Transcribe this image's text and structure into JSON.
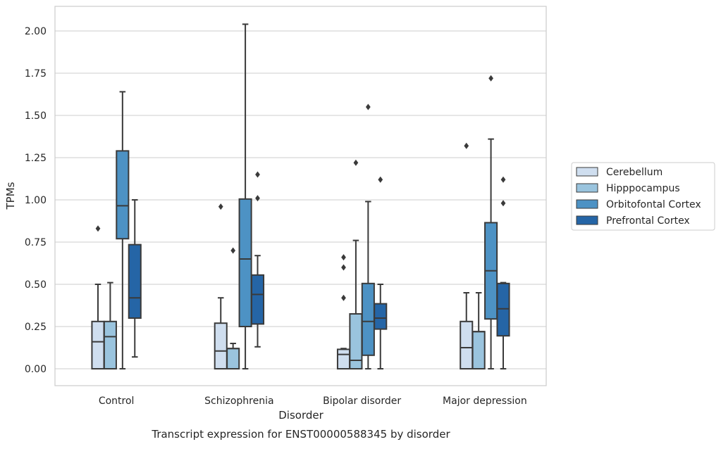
{
  "caption": "Transcript expression for ENST00000588345 by disorder",
  "chart_data": {
    "type": "box",
    "title": "",
    "xlabel": "Disorder",
    "ylabel": "TPMs",
    "ylim": [
      -0.1,
      2.15
    ],
    "yticks": [
      0.0,
      0.25,
      0.5,
      0.75,
      1.0,
      1.25,
      1.5,
      1.75,
      2.0
    ],
    "ytick_labels": [
      "0.00",
      "0.25",
      "0.50",
      "0.75",
      "1.00",
      "1.25",
      "1.50",
      "1.75",
      "2.00"
    ],
    "grid": "horizontal",
    "legend_position": "right",
    "categories": [
      "Control",
      "Schizophrenia",
      "Bipolar disorder",
      "Major depression"
    ],
    "series": [
      {
        "name": "Cerebellum",
        "color": "#cfdeef",
        "boxes": [
          {
            "whisker_low": 0.0,
            "q1": 0.0,
            "median": 0.16,
            "q3": 0.28,
            "whisker_high": 0.5,
            "outliers": [
              0.83
            ]
          },
          {
            "whisker_low": 0.0,
            "q1": 0.0,
            "median": 0.105,
            "q3": 0.27,
            "whisker_high": 0.42,
            "outliers": [
              0.96
            ]
          },
          {
            "whisker_low": 0.0,
            "q1": 0.0,
            "median": 0.085,
            "q3": 0.115,
            "whisker_high": 0.12,
            "outliers": [
              0.42,
              0.6,
              0.66
            ]
          },
          {
            "whisker_low": 0.0,
            "q1": 0.0,
            "median": 0.125,
            "q3": 0.28,
            "whisker_high": 0.45,
            "outliers": [
              1.32
            ]
          }
        ]
      },
      {
        "name": "Hipppocampus",
        "color": "#9ac4de",
        "boxes": [
          {
            "whisker_low": 0.0,
            "q1": 0.0,
            "median": 0.19,
            "q3": 0.28,
            "whisker_high": 0.51,
            "outliers": []
          },
          {
            "whisker_low": 0.0,
            "q1": 0.0,
            "median": 0.12,
            "q3": 0.12,
            "whisker_high": 0.15,
            "outliers": [
              0.7
            ]
          },
          {
            "whisker_low": 0.0,
            "q1": 0.0,
            "median": 0.05,
            "q3": 0.325,
            "whisker_high": 0.76,
            "outliers": [
              1.22
            ]
          },
          {
            "whisker_low": 0.0,
            "q1": 0.0,
            "median": 0.22,
            "q3": 0.22,
            "whisker_high": 0.45,
            "outliers": []
          }
        ]
      },
      {
        "name": "Orbitofontal Cortex",
        "color": "#4d92c4",
        "boxes": [
          {
            "whisker_low": 0.0,
            "q1": 0.77,
            "median": 0.965,
            "q3": 1.29,
            "whisker_high": 1.64,
            "outliers": []
          },
          {
            "whisker_low": 0.0,
            "q1": 0.25,
            "median": 0.65,
            "q3": 1.005,
            "whisker_high": 2.04,
            "outliers": []
          },
          {
            "whisker_low": 0.0,
            "q1": 0.08,
            "median": 0.28,
            "q3": 0.505,
            "whisker_high": 0.99,
            "outliers": [
              1.55
            ]
          },
          {
            "whisker_low": 0.0,
            "q1": 0.295,
            "median": 0.58,
            "q3": 0.865,
            "whisker_high": 1.36,
            "outliers": [
              1.72
            ]
          }
        ]
      },
      {
        "name": "Prefrontal Cortex",
        "color": "#2565a6",
        "boxes": [
          {
            "whisker_low": 0.07,
            "q1": 0.3,
            "median": 0.42,
            "q3": 0.735,
            "whisker_high": 1.0,
            "outliers": []
          },
          {
            "whisker_low": 0.13,
            "q1": 0.265,
            "median": 0.44,
            "q3": 0.555,
            "whisker_high": 0.67,
            "outliers": [
              1.01,
              1.15
            ]
          },
          {
            "whisker_low": 0.0,
            "q1": 0.235,
            "median": 0.3,
            "q3": 0.385,
            "whisker_high": 0.5,
            "outliers": [
              1.12
            ]
          },
          {
            "whisker_low": 0.0,
            "q1": 0.195,
            "median": 0.355,
            "q3": 0.505,
            "whisker_high": 0.51,
            "outliers": [
              0.98,
              1.12
            ]
          }
        ]
      }
    ]
  }
}
